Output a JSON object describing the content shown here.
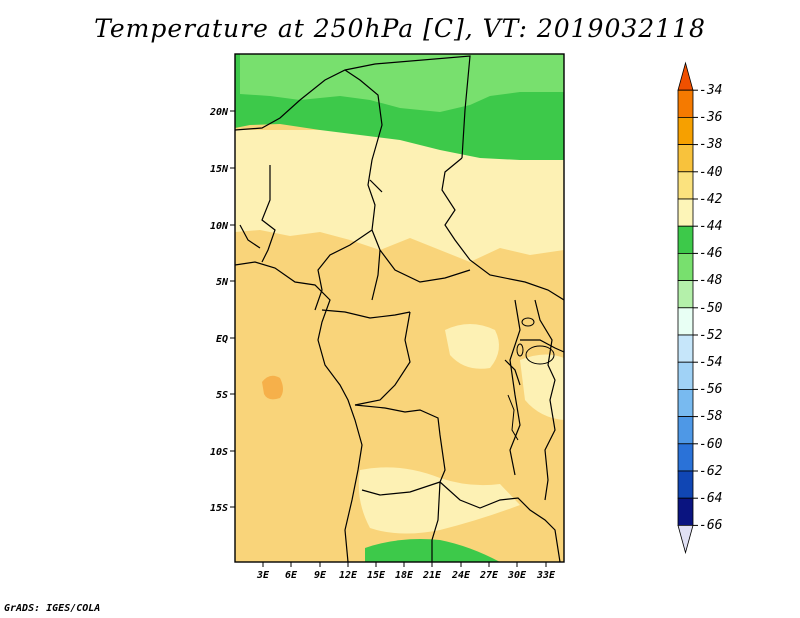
{
  "title": "Temperature at 250hPa [C], VT: 2019032118",
  "credit": "GrADS: IGES/COLA",
  "map": {
    "lat_labels": [
      "20N",
      "15N",
      "10N",
      "5N",
      "EQ",
      "5S",
      "10S",
      "15S"
    ],
    "lon_labels": [
      "3E",
      "6E",
      "9E",
      "12E",
      "15E",
      "18E",
      "21E",
      "24E",
      "27E",
      "30E",
      "33E"
    ],
    "field_colors": {
      "dominant_band": "#f9d47a",
      "light_band": "#fdf1b4",
      "warm_spot": "#f6b04a",
      "green_dark": "#3dc94a",
      "green_mid": "#78e06e"
    }
  },
  "colorbar": {
    "labels": [
      "-34",
      "-36",
      "-38",
      "-40",
      "-42",
      "-44",
      "-46",
      "-48",
      "-50",
      "-52",
      "-54",
      "-56",
      "-58",
      "-60",
      "-62",
      "-64",
      "-66"
    ],
    "colors": [
      "#f05000",
      "#f57a00",
      "#f6a000",
      "#f8c23c",
      "#fbe27e",
      "#fdf5b8",
      "#3dc94a",
      "#78e06e",
      "#b4f0aa",
      "#e8fff4",
      "#c6e6fa",
      "#a0d2f6",
      "#78baf0",
      "#4e98e6",
      "#2a72d8",
      "#1046b4",
      "#0a1480",
      "#e0e0f4"
    ]
  }
}
